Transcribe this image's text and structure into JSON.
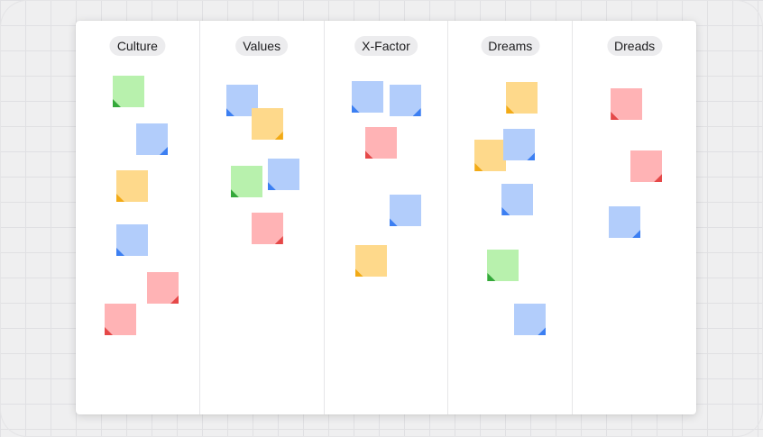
{
  "board": {
    "columns": [
      {
        "id": "culture",
        "title": "Culture",
        "notes": [
          {
            "color": "green",
            "fold": "left"
          },
          {
            "color": "blue",
            "fold": "right"
          },
          {
            "color": "yellow",
            "fold": "left"
          },
          {
            "color": "blue",
            "fold": "left"
          },
          {
            "color": "red",
            "fold": "right"
          },
          {
            "color": "red",
            "fold": "left"
          }
        ]
      },
      {
        "id": "values",
        "title": "Values",
        "notes": [
          {
            "color": "blue",
            "fold": "left"
          },
          {
            "color": "yellow",
            "fold": "right"
          },
          {
            "color": "green",
            "fold": "left"
          },
          {
            "color": "blue",
            "fold": "left"
          },
          {
            "color": "red",
            "fold": "right"
          }
        ]
      },
      {
        "id": "x-factor",
        "title": "X-Factor",
        "notes": [
          {
            "color": "blue",
            "fold": "left"
          },
          {
            "color": "blue",
            "fold": "right"
          },
          {
            "color": "red",
            "fold": "left"
          },
          {
            "color": "blue",
            "fold": "left"
          },
          {
            "color": "yellow",
            "fold": "left"
          }
        ]
      },
      {
        "id": "dreams",
        "title": "Dreams",
        "notes": [
          {
            "color": "yellow",
            "fold": "left"
          },
          {
            "color": "yellow",
            "fold": "left"
          },
          {
            "color": "blue",
            "fold": "right"
          },
          {
            "color": "blue",
            "fold": "left"
          },
          {
            "color": "green",
            "fold": "left"
          },
          {
            "color": "blue",
            "fold": "right"
          }
        ]
      },
      {
        "id": "dreads",
        "title": "Dreads",
        "notes": [
          {
            "color": "red",
            "fold": "left"
          },
          {
            "color": "red",
            "fold": "right"
          },
          {
            "color": "blue",
            "fold": "right"
          }
        ]
      }
    ]
  },
  "colors": {
    "green": "#b8f1ad",
    "blue": "#b2cdfb",
    "yellow": "#fed98b",
    "red": "#ffb3b5"
  }
}
